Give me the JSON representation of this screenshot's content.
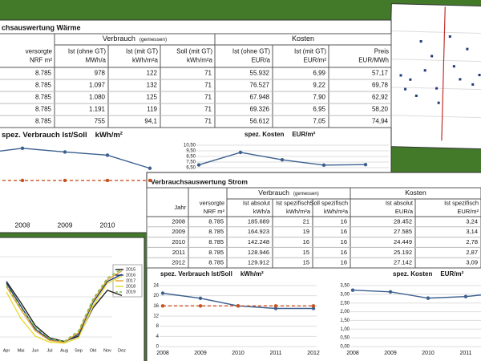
{
  "warme": {
    "title": "chsauswertung Wärme",
    "table": {
      "groups": [
        {
          "label": "Verbrauch",
          "note": "(gemessen)"
        },
        {
          "label": "Kosten"
        }
      ],
      "headers": [
        [
          "versorgte",
          "NRF  m²"
        ],
        [
          "Ist (ohne GT)",
          "MWh/a"
        ],
        [
          "Ist (mit GT)",
          "kWh/m²a"
        ],
        [
          "Soll (mit GT)",
          "kWh/m²a"
        ],
        [
          "Ist (ohne GT)",
          "EUR/a"
        ],
        [
          "Ist (mit GT)",
          "EUR/m²"
        ],
        [
          "Preis",
          "EUR/MWh"
        ]
      ],
      "rows": [
        [
          "8.785",
          "978",
          "122",
          "71",
          "55.932",
          "6,99",
          "57,17"
        ],
        [
          "8.785",
          "1.097",
          "132",
          "71",
          "76.527",
          "9,22",
          "69,78"
        ],
        [
          "8.785",
          "1.080",
          "125",
          "71",
          "67.948",
          "7,90",
          "62,92"
        ],
        [
          "8.785",
          "1.191",
          "119",
          "71",
          "69.326",
          "6,95",
          "58,20"
        ],
        [
          "8.785",
          "755",
          "94,1",
          "71",
          "56.612",
          "7,05",
          "74,94"
        ]
      ]
    },
    "charts": [
      {
        "type": "line",
        "title": "spez. Verbrauch Ist/Soll",
        "unit": "kWh/m²",
        "markers": true,
        "categories": [
          null,
          "2008",
          "2009",
          "2010",
          null
        ],
        "series": [
          {
            "color": "#3b5f8e",
            "values": [
              122,
              132,
              125,
              119,
              94.1
            ]
          },
          {
            "color": "#c8501e",
            "dashed": true,
            "values": [
              71,
              71,
              71,
              71,
              71
            ]
          }
        ],
        "ylim": [
          10,
          147
        ]
      },
      {
        "type": "line",
        "title": "spez. Kosten",
        "unit": "EUR/m²",
        "markers": true,
        "categories": [
          null,
          null,
          null,
          null,
          null
        ],
        "series": [
          {
            "color": "#3b5f8e",
            "values": [
              6.99,
              9.22,
              7.9,
              6.95,
              7.05
            ]
          }
        ],
        "ylim": [
          6.5,
          10.5
        ],
        "yticks": [
          {
            "value": 10.5,
            "label": "10,50"
          },
          {
            "value": 9.5,
            "label": "9,50"
          },
          {
            "value": 8.5,
            "label": "8,50"
          },
          {
            "value": 7.5,
            "label": "7,50"
          },
          {
            "value": 6.5,
            "label": "6,50"
          }
        ]
      }
    ]
  },
  "strom": {
    "title": "Verbrauchsauswertung Strom",
    "table": {
      "groups": [
        {
          "label": "Verbrauch",
          "note": "(gemessen)"
        },
        {
          "label": "Kosten"
        }
      ],
      "headers": [
        [
          "Jahr"
        ],
        [
          "versorgte",
          "NRF  m²"
        ],
        [
          "Ist absolut",
          "kWh/a"
        ],
        [
          "Ist spezifisch",
          "kWh/m²a"
        ],
        [
          "Soll spezifisch",
          "kWh/m²a"
        ],
        [
          "Ist absolut",
          "EUR/a"
        ],
        [
          "Ist spezifisch",
          "EUR/m²"
        ]
      ],
      "rows": [
        [
          "2008",
          "8.785",
          "185.689",
          "21",
          "16",
          "28.452",
          "3,24"
        ],
        [
          "2009",
          "8.785",
          "164.923",
          "19",
          "16",
          "27.585",
          "3,14"
        ],
        [
          "2010",
          "8.785",
          "142.248",
          "16",
          "16",
          "24.449",
          "2,78"
        ],
        [
          "2011",
          "8.785",
          "128.946",
          "15",
          "16",
          "25.192",
          "2,87"
        ],
        [
          "2012",
          "8.785",
          "129.912",
          "15",
          "16",
          "27.142",
          "3,09"
        ]
      ]
    },
    "charts": [
      {
        "type": "line",
        "title": "spez. Verbrauch Ist/Soll",
        "unit": "kWh/m²",
        "markers": true,
        "categories": [
          "2008",
          "2009",
          "2010",
          "2011",
          "2012"
        ],
        "series": [
          {
            "color": "#3b5f8e",
            "values": [
              21,
              19,
              16,
              15,
              15
            ]
          },
          {
            "color": "#c8501e",
            "dashed": true,
            "values": [
              16,
              16,
              16,
              16,
              16
            ]
          }
        ],
        "ylim": [
          0,
          24
        ],
        "yticks": [
          24,
          20,
          16,
          12,
          8,
          4,
          0
        ]
      },
      {
        "type": "line",
        "title": "spez. Kosten",
        "unit": "EUR/m²",
        "markers": true,
        "categories": [
          "2008",
          "2009",
          "2010",
          "2011",
          null
        ],
        "series": [
          {
            "color": "#3b5f8e",
            "values": [
              3.24,
              3.14,
              2.78,
              2.87,
              3.09
            ]
          }
        ],
        "ylim": [
          0,
          3.5
        ],
        "yticks": [
          {
            "value": 3.5,
            "label": "3,50"
          },
          {
            "value": 3,
            "label": "3,00"
          },
          {
            "value": 2.5,
            "label": "2,50"
          },
          {
            "value": 2,
            "label": "2,00"
          },
          {
            "value": 1.5,
            "label": "1,50"
          },
          {
            "value": 1,
            "label": "1,00"
          },
          {
            "value": 0.5,
            "label": "0,50"
          },
          {
            "value": 0,
            "label": "0,00"
          }
        ]
      }
    ]
  },
  "monthly": {
    "type": "line",
    "categories": [
      "Apr",
      "Mai",
      "Jun",
      "Jul",
      "Aug",
      "Sep",
      "Okt",
      "Nov",
      "Dez"
    ],
    "series": [
      {
        "name": "2015",
        "color": "#222222",
        "values": [
          72,
          48,
          22,
          8,
          4,
          10,
          42,
          62,
          56
        ]
      },
      {
        "name": "2016",
        "color": "#1f3a7a",
        "values": [
          70,
          44,
          18,
          6,
          3,
          12,
          48,
          72,
          80
        ]
      },
      {
        "name": "2017",
        "color": "#e8a33a",
        "values": [
          66,
          40,
          16,
          5,
          3,
          14,
          50,
          74,
          84
        ]
      },
      {
        "name": "2018",
        "color": "#e3dc3c",
        "values": [
          60,
          30,
          10,
          3,
          2,
          8,
          44,
          70,
          78
        ]
      },
      {
        "name": "2019",
        "color": "#7ac043",
        "dashed": true,
        "values": [
          68,
          42,
          20,
          7,
          4,
          16,
          52,
          76,
          86
        ]
      }
    ],
    "ylim": [
      0,
      100
    ]
  }
}
